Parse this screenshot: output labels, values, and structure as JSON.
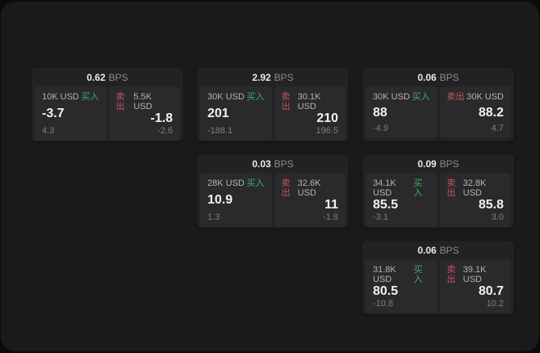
{
  "app": {
    "theme": "dark",
    "background": "#0b0b0c",
    "panel_background": "#1a1a1b"
  },
  "colors": {
    "buy_green": "#3fae6e",
    "sell_red": "#c75262",
    "card_background": "#222224",
    "tile_background": "#2a2a2c"
  },
  "labels": {
    "buy": "买入",
    "sell": "卖出",
    "bps_unit": "BPS"
  },
  "cards": [
    {
      "bps": "0.62",
      "buy": {
        "size": "10K USD",
        "price": "-3.7",
        "delta": "4.3"
      },
      "sell": {
        "size": "5.5K USD",
        "price": "-1.8",
        "delta": "-2.6"
      }
    },
    {
      "bps": "2.92",
      "buy": {
        "size": "30K USD",
        "price": "201",
        "delta": "-188.1"
      },
      "sell": {
        "size": "30.1K USD",
        "price": "210",
        "delta": "196.5"
      }
    },
    {
      "bps": "0.06",
      "buy": {
        "size": "30K USD",
        "price": "88",
        "delta": "-4.9"
      },
      "sell": {
        "size": "30K USD",
        "price": "88.2",
        "delta": "4.7"
      }
    },
    {
      "bps": "0.03",
      "buy": {
        "size": "28K USD",
        "price": "10.9",
        "delta": "1.3"
      },
      "sell": {
        "size": "32.6K USD",
        "price": "11",
        "delta": "-1.8"
      }
    },
    {
      "bps": "0.09",
      "buy": {
        "size": "34.1K USD",
        "price": "85.5",
        "delta": "-3.1"
      },
      "sell": {
        "size": "32.8K USD",
        "price": "85.8",
        "delta": "3.0"
      }
    },
    {
      "bps": "0.06",
      "buy": {
        "size": "31.8K USD",
        "price": "80.5",
        "delta": "-10.8"
      },
      "sell": {
        "size": "39.1K USD",
        "price": "80.7",
        "delta": "10.2"
      }
    }
  ]
}
